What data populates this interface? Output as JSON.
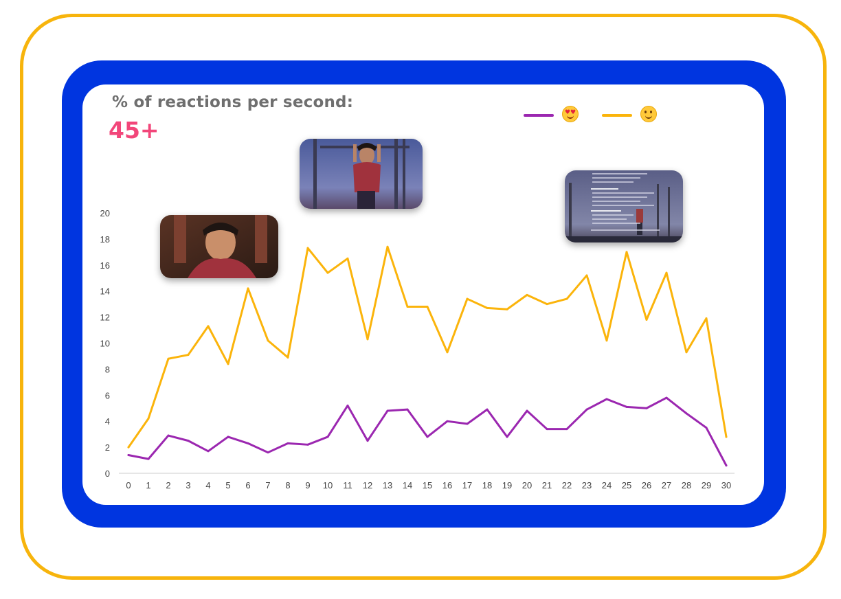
{
  "header": {
    "title": "% of reactions per second:",
    "count": "45+"
  },
  "legend": [
    {
      "icon": "heart-eyes-emoji-icon",
      "color": "#9b27b0"
    },
    {
      "icon": "slightly-smiling-face-emoji-icon",
      "color": "#fbb40b"
    }
  ],
  "colors": {
    "outer_border": "#f7b40c",
    "panel": "#0035e0",
    "card": "#ffffff",
    "title": "#6f6f6f",
    "count": "#f2467a"
  },
  "thumbnails": [
    {
      "icon": "video-frame-thumbnail-1"
    },
    {
      "icon": "video-frame-thumbnail-2"
    },
    {
      "icon": "video-frame-thumbnail-3"
    }
  ],
  "chart_data": {
    "type": "line",
    "title": "",
    "xlabel": "",
    "ylabel": "",
    "x": [
      0,
      1,
      2,
      3,
      4,
      5,
      6,
      7,
      8,
      9,
      10,
      11,
      12,
      13,
      14,
      15,
      16,
      17,
      18,
      19,
      20,
      21,
      22,
      23,
      24,
      25,
      26,
      27,
      28,
      29,
      30
    ],
    "ylim": [
      0,
      20
    ],
    "yticks": [
      0,
      2,
      4,
      6,
      8,
      10,
      12,
      14,
      16,
      18,
      20
    ],
    "grid": false,
    "legend_position": "top-right",
    "series": [
      {
        "color": "#9b27b0",
        "values": [
          1.4,
          1.1,
          2.9,
          2.5,
          1.7,
          2.8,
          2.3,
          1.6,
          2.3,
          2.2,
          2.8,
          5.2,
          2.5,
          4.8,
          4.9,
          2.8,
          4.0,
          3.8,
          4.9,
          2.8,
          4.8,
          3.4,
          3.4,
          4.9,
          5.7,
          5.1,
          5.0,
          5.8,
          4.6,
          3.5,
          0.6
        ]
      },
      {
        "color": "#fbb40b",
        "values": [
          2.0,
          4.2,
          8.8,
          9.1,
          11.3,
          8.4,
          14.2,
          10.2,
          8.9,
          17.3,
          15.4,
          16.5,
          10.3,
          17.4,
          12.8,
          12.8,
          9.3,
          13.4,
          12.7,
          12.6,
          13.7,
          13.0,
          13.4,
          15.2,
          10.2,
          17.0,
          11.8,
          15.4,
          9.3,
          11.9,
          2.8
        ]
      }
    ]
  }
}
